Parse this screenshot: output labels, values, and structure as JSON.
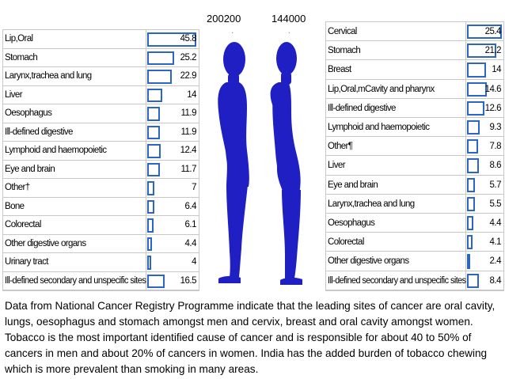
{
  "colors": {
    "figure": "#1f1fc4",
    "bar_border": "#2a66c8",
    "grid": "#c8c8c8"
  },
  "counts": {
    "men": "200200",
    "women": "144000",
    "men_mark": "ˏ",
    "women_mark": "ˎ"
  },
  "chart_data": [
    {
      "type": "table",
      "name_printed": "",
      "rows": [
        {
          "label": "Lip,Oral",
          "value": "45.8"
        },
        {
          "label": "Stomach",
          "value": "25.2"
        },
        {
          "label": "Larynx,trachea and lung",
          "value": "22.9"
        },
        {
          "label": "Liver",
          "value": "14"
        },
        {
          "label": "Oesophagus",
          "value": "11.9"
        },
        {
          "label": "Ill-defined digestive",
          "value": "11.9"
        },
        {
          "label": "Lymphoid and haemopoietic",
          "value": "12.4"
        },
        {
          "label": "Eye and brain",
          "value": "11.7"
        },
        {
          "label": "Other†",
          "value": "7"
        },
        {
          "label": "Bone",
          "value": "6.4"
        },
        {
          "label": "Colorectal",
          "value": "6.1"
        },
        {
          "label": "Other digestive organs",
          "value": "4.4"
        },
        {
          "label": "Urinary tract",
          "value": "4"
        },
        {
          "label": "Ill-defined secondary and unspecific sites",
          "value": "16.5"
        }
      ]
    },
    {
      "type": "table",
      "rows": [
        {
          "label": "Cervical",
          "value": "25.4"
        },
        {
          "label": "Stomach",
          "value": "21.2"
        },
        {
          "label": "Breast",
          "value": "14"
        },
        {
          "label": "Lip,Oral,mCavity and pharynx",
          "value": "14.6"
        },
        {
          "label": "Ill-defined digestive",
          "value": "12.6"
        },
        {
          "label": "Lymphoid and haemopoietic",
          "value": "9.3"
        },
        {
          "label": "Other¶",
          "value": "7.8"
        },
        {
          "label": "Liver",
          "value": "8.6"
        },
        {
          "label": "Eye and brain",
          "value": "5.7"
        },
        {
          "label": "Larynx,trachea and lung",
          "value": "5.5"
        },
        {
          "label": "Oesophagus",
          "value": "4.4"
        },
        {
          "label": "Colorectal",
          "value": "4.1"
        },
        {
          "label": "Other digestive organs",
          "value": "2.4"
        },
        {
          "label": "Ill-defined secondary and unspecific sites",
          "value": "8.4"
        }
      ]
    }
  ],
  "caption": "Data from National Cancer Registry Programme indicate that the leading sites of cancer are oral cavity, lungs, oesophagus and stomach amongst men and cervix, breast and oral cavity amongst women. Tobacco is the most important identified cause of cancer and is responsible for about 40 to 50% of cancers in men and about 20% of cancers in women. India has the added burden of tobacco chewing which is more prevalent than smoking in many areas."
}
